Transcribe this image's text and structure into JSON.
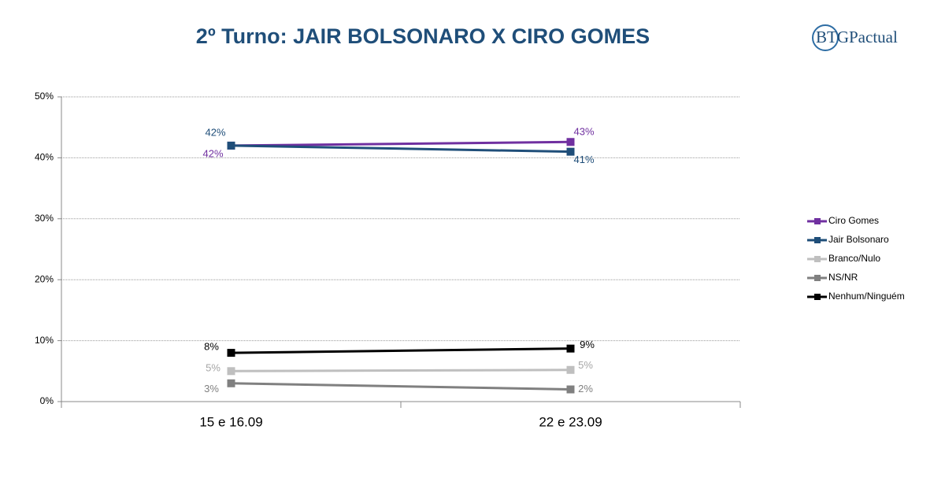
{
  "logo": "BTGPactual",
  "chart_data": {
    "type": "line",
    "title": "2º Turno: JAIR BOLSONARO X CIRO GOMES",
    "categories": [
      "15 e 16.09",
      "22 e 23.09"
    ],
    "series": [
      {
        "name": "Ciro Gomes",
        "color": "#7030a0",
        "values": [
          42,
          42.6
        ],
        "value_labels": [
          "42%",
          "43%"
        ]
      },
      {
        "name": "Jair Bolsonaro",
        "color": "#1f4e79",
        "values": [
          42,
          41
        ],
        "value_labels": [
          "42%",
          "41%"
        ]
      },
      {
        "name": "Branco/Nulo",
        "color": "#bfbfbf",
        "values": [
          5,
          5.2
        ],
        "value_labels": [
          "5%",
          "5%"
        ]
      },
      {
        "name": "NS/NR",
        "color": "#808080",
        "values": [
          3,
          2
        ],
        "value_labels": [
          "3%",
          "2%"
        ]
      },
      {
        "name": "Nenhum/Ninguém",
        "color": "#000000",
        "values": [
          8,
          8.7
        ],
        "value_labels": [
          "8%",
          "9%"
        ]
      }
    ],
    "ylim": [
      0,
      50
    ],
    "yticks": [
      {
        "value": 0,
        "label": "0%"
      },
      {
        "value": 10,
        "label": "10%"
      },
      {
        "value": 20,
        "label": "20%"
      },
      {
        "value": 30,
        "label": "30%"
      },
      {
        "value": 40,
        "label": "40%"
      },
      {
        "value": 50,
        "label": "50%"
      }
    ],
    "grid": true,
    "legend": "right"
  }
}
